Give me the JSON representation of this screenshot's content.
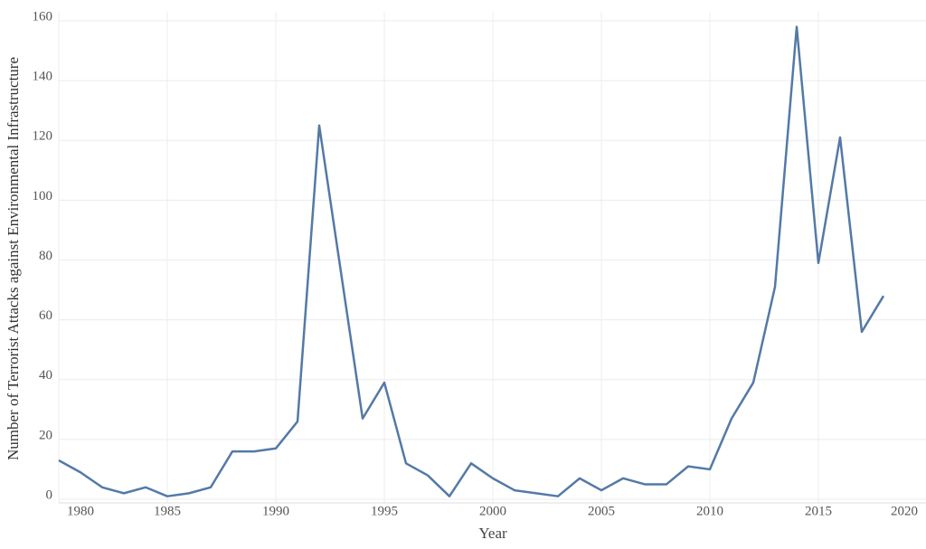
{
  "chart_data": {
    "type": "line",
    "x_label": "Year",
    "y_label": "Number of Terrorist Attacks against Environmental Infrastructure",
    "x": [
      1980,
      1981,
      1982,
      1983,
      1984,
      1985,
      1986,
      1987,
      1988,
      1989,
      1990,
      1991,
      1992,
      1993,
      1994,
      1995,
      1996,
      1997,
      1998,
      1999,
      2000,
      2001,
      2002,
      2003,
      2004,
      2005,
      2006,
      2007,
      2008,
      2009,
      2010,
      2011,
      2012,
      2013,
      2014,
      2015,
      2016,
      2017,
      2018
    ],
    "series": [
      {
        "name": "Attacks",
        "color": "#5479a6",
        "values": [
          13,
          9,
          4,
          2,
          4,
          1,
          2,
          4,
          16,
          16,
          17,
          26,
          125,
          76,
          27,
          39,
          12,
          8,
          1,
          12,
          7,
          3,
          2,
          1,
          7,
          3,
          7,
          5,
          5,
          11,
          10,
          27,
          39,
          71,
          158,
          79,
          121,
          56,
          68
        ]
      }
    ],
    "xlim": [
      1980,
      2020
    ],
    "xticks": [
      1980,
      1985,
      1990,
      1995,
      2000,
      2005,
      2010,
      2015,
      2020
    ],
    "ylim": [
      0,
      160
    ],
    "yticks": [
      0,
      20,
      40,
      60,
      80,
      100,
      120,
      140,
      160
    ],
    "grid": true
  }
}
